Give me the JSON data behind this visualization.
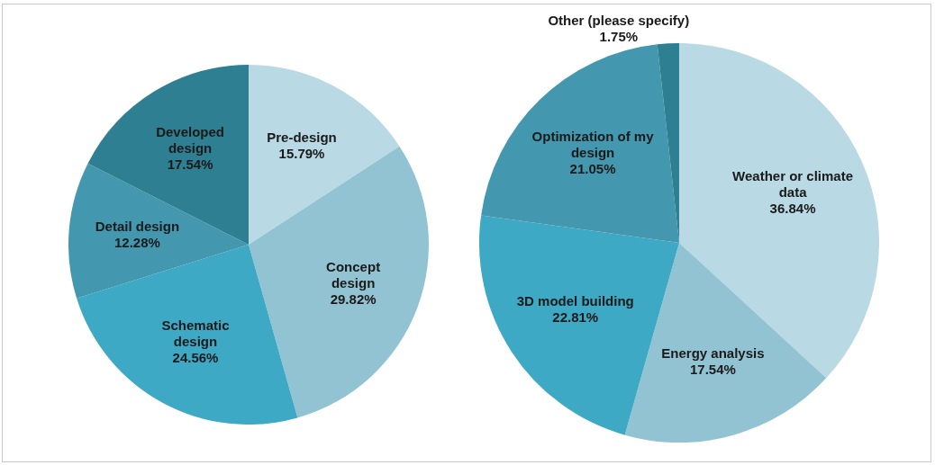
{
  "chart_data": [
    {
      "type": "pie",
      "categories": [
        "Pre-design",
        "Concept design",
        "Schematic design",
        "Detail design",
        "Developed design"
      ],
      "values": [
        15.79,
        29.82,
        24.56,
        12.28,
        17.54
      ],
      "value_labels": [
        "15.79%",
        "29.82%",
        "24.56%",
        "12.28%",
        "17.54%"
      ],
      "colors": [
        "#b9d9e4",
        "#92c3d3",
        "#3ea9c5",
        "#4398b0",
        "#2f7f93"
      ],
      "data_labels": true,
      "legend": false
    },
    {
      "type": "pie",
      "categories": [
        "Weather or climate data",
        "Energy analysis",
        "3D model building",
        "Optimization of my design",
        "Other (please specify)"
      ],
      "values": [
        36.84,
        17.54,
        22.81,
        21.05,
        1.75
      ],
      "value_labels": [
        "36.84%",
        "17.54%",
        "22.81%",
        "21.05%",
        "1.75%"
      ],
      "colors": [
        "#b9d9e4",
        "#92c3d3",
        "#3ea9c5",
        "#4398b0",
        "#2f7f93"
      ],
      "data_labels": true,
      "legend": false
    }
  ]
}
